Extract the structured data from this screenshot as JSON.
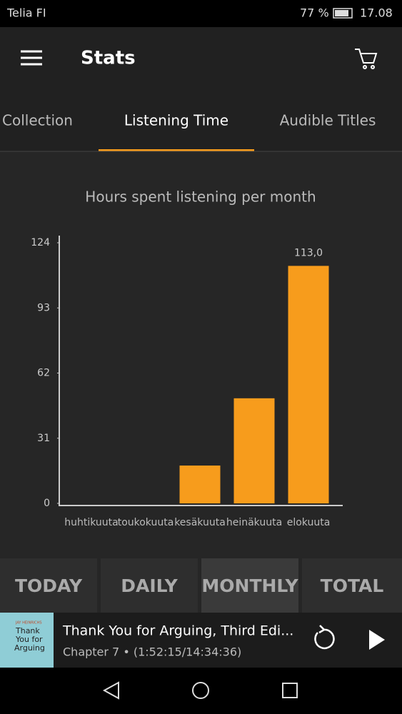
{
  "status_bar": {
    "carrier": "Telia FI",
    "battery": "77 %",
    "time": "17.08"
  },
  "app_bar": {
    "title": "Stats"
  },
  "tabs": [
    "Collection",
    "Listening Time",
    "Audible Titles"
  ],
  "chart_data": {
    "type": "bar",
    "title": "Hours spent listening per month",
    "categories": [
      "huhtikuuta",
      "toukokuuta",
      "kesäkuuta",
      "heinäkuuta",
      "elokuuta"
    ],
    "values": [
      0,
      0,
      18,
      50,
      113.0
    ],
    "value_labels": [
      null,
      null,
      null,
      null,
      "113,0"
    ],
    "color": "#f79c1c",
    "ylim": [
      0,
      124
    ],
    "yticks": [
      0,
      31,
      62,
      93,
      124
    ],
    "grid": false
  },
  "period_buttons": [
    "TODAY",
    "DAILY",
    "MONTHLY",
    "TOTAL"
  ],
  "player": {
    "cover_author": "JAY HEINRICHS",
    "cover_title": [
      "Thank",
      "You for",
      "Arguing"
    ],
    "title": "Thank You for Arguing, Third Edi...",
    "subtitle": "Chapter 7 • (1:52:15/14:34:36)"
  }
}
